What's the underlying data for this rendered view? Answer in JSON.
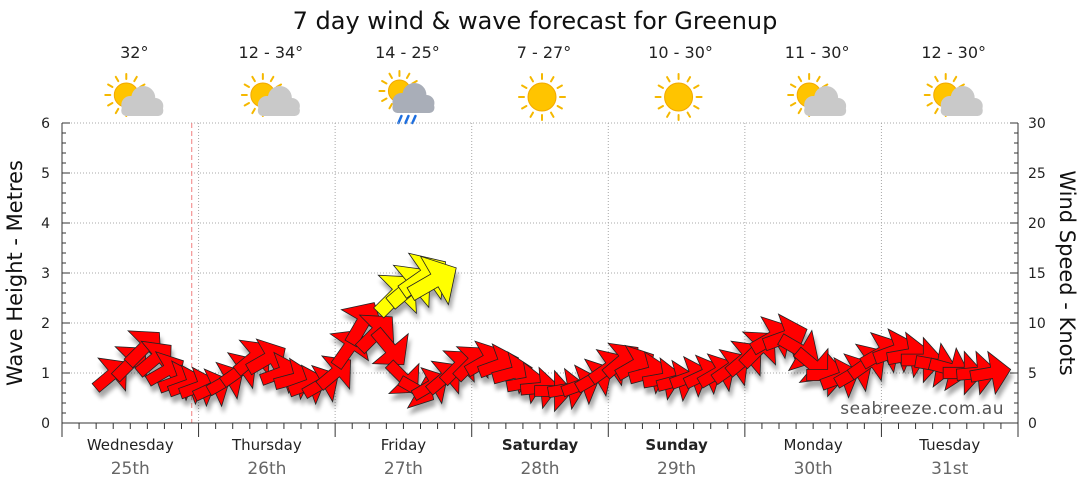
{
  "chart_data": {
    "type": "line",
    "title": "7 day wind & wave forecast for Greenup",
    "ylabel_left": "Wave Height - Metres",
    "ylabel_right": "Wind Speed - Knots",
    "y_left_range": [
      0,
      6
    ],
    "y_right_range": [
      0,
      30
    ],
    "y_left_ticks": [
      "0",
      "1",
      "2",
      "3",
      "4",
      "5",
      "6"
    ],
    "y_right_ticks": [
      "0",
      "5",
      "10",
      "15",
      "20",
      "25",
      "30"
    ],
    "grid": true,
    "days": [
      {
        "name": "Wednesday",
        "date": "25th",
        "temp": "32°",
        "icon": "partly-cloudy-icon",
        "bold": false
      },
      {
        "name": "Thursday",
        "date": "26th",
        "temp": "12 - 34°",
        "icon": "partly-cloudy-icon",
        "bold": false
      },
      {
        "name": "Friday",
        "date": "27th",
        "temp": "14 - 25°",
        "icon": "rain-shower-icon",
        "bold": false
      },
      {
        "name": "Saturday",
        "date": "28th",
        "temp": "7 - 27°",
        "icon": "sunny-icon",
        "bold": true
      },
      {
        "name": "Sunday",
        "date": "29th",
        "temp": "10 - 30°",
        "icon": "sunny-icon",
        "bold": true
      },
      {
        "name": "Monday",
        "date": "30th",
        "temp": "11 - 30°",
        "icon": "partly-cloudy-icon",
        "bold": false
      },
      {
        "name": "Tuesday",
        "date": "31st",
        "temp": "12 - 30°",
        "icon": "partly-cloudy-icon",
        "bold": false
      }
    ],
    "series": [
      {
        "unit": "knots",
        "x_day": [
          0.36,
          0.5,
          0.6,
          0.68,
          0.76,
          0.85,
          0.92,
          1.0,
          1.1,
          1.2,
          1.3,
          1.4,
          1.5,
          1.6,
          1.7,
          1.8,
          1.9,
          2.0,
          2.1,
          2.2,
          2.3,
          2.4,
          2.5,
          2.6,
          2.7,
          2.8,
          2.9,
          3.0,
          3.1,
          3.2,
          3.3,
          3.4,
          3.5,
          3.6,
          3.7,
          3.8,
          3.9,
          4.0,
          4.1,
          4.2,
          4.3,
          4.4,
          4.5,
          4.6,
          4.7,
          4.8,
          4.9,
          5.0,
          5.1,
          5.2,
          5.3,
          5.4,
          5.5,
          5.6,
          5.7,
          5.8,
          5.9,
          6.0,
          6.1,
          6.2,
          6.3,
          6.4,
          6.5,
          6.6,
          6.7,
          6.8
        ],
        "values": [
          4.8,
          6.0,
          7.5,
          6.4,
          5.2,
          4.2,
          3.8,
          3.6,
          3.5,
          4.2,
          5.2,
          6.5,
          6.4,
          5.0,
          4.4,
          3.8,
          3.9,
          5.0,
          7.5,
          10.0,
          9.0,
          7.5,
          4.5,
          3.3,
          3.7,
          4.5,
          5.6,
          6.0,
          6.2,
          5.8,
          5.0,
          4.0,
          3.5,
          3.2,
          3.4,
          3.8,
          4.5,
          5.5,
          6.2,
          5.8,
          5.0,
          4.4,
          4.2,
          4.6,
          4.8,
          5.0,
          5.5,
          6.4,
          7.4,
          8.5,
          8.6,
          7.3,
          5.8,
          4.8,
          4.5,
          5.0,
          6.0,
          7.0,
          7.2,
          6.8,
          6.3,
          5.8,
          5.4,
          5.0,
          5.0,
          5.0
        ],
        "direction_deg": [
          230,
          225,
          225,
          230,
          240,
          250,
          250,
          250,
          245,
          240,
          235,
          230,
          240,
          250,
          255,
          250,
          240,
          230,
          215,
          210,
          225,
          320,
          315,
          300,
          240,
          230,
          225,
          225,
          240,
          250,
          255,
          260,
          265,
          270,
          260,
          250,
          240,
          235,
          230,
          240,
          255,
          260,
          255,
          250,
          245,
          240,
          235,
          230,
          225,
          240,
          250,
          300,
          310,
          270,
          250,
          240,
          235,
          240,
          250,
          260,
          270,
          280,
          285,
          270,
          265,
          260
        ]
      },
      {
        "unit": "knots",
        "highlight_color": "#ffff00",
        "x_day": [
          2.45,
          2.55,
          2.65,
          2.72
        ],
        "values": [
          12.8,
          13.6,
          14.6,
          14.2
        ],
        "direction_deg": [
          225,
          230,
          235,
          240
        ]
      }
    ]
  },
  "brand": "seabreeze.com.au",
  "colors": {
    "arrow_red": "#ff0000",
    "arrow_yellow": "#ffff00",
    "grid": "#a8a8a8",
    "now_line": "#f08080"
  }
}
